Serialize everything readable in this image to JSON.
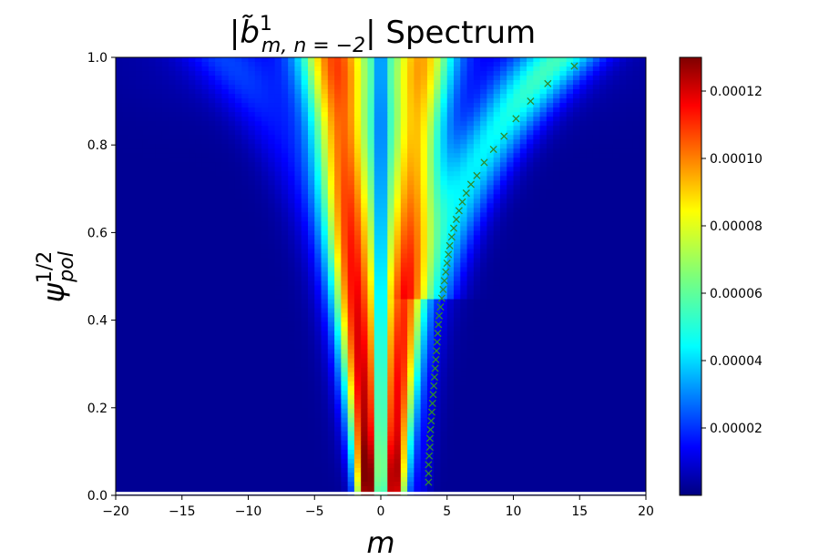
{
  "chart_data": {
    "type": "heatmap",
    "title": "|b̃¹ m, n = −2| Spectrum",
    "title_parts": {
      "prefix": "|",
      "sym": "b̃",
      "sup": "1",
      "sub": "m, n = −2",
      "suffix": "| Spectrum"
    },
    "xlabel": "m",
    "ylabel_parts": {
      "sym": "ψ",
      "sup": "1/2",
      "sub": "pol"
    },
    "xlim": [
      -20,
      20
    ],
    "ylim": [
      0.0,
      1.0
    ],
    "x_ticks": [
      -20,
      -15,
      -10,
      -5,
      0,
      5,
      10,
      15,
      20
    ],
    "x_tick_labels": [
      "−20",
      "−15",
      "−10",
      "−5",
      "0",
      "5",
      "10",
      "15",
      "20"
    ],
    "y_ticks": [
      0.0,
      0.2,
      0.4,
      0.6,
      0.8,
      1.0
    ],
    "y_tick_labels": [
      "0.0",
      "0.2",
      "0.4",
      "0.6",
      "0.8",
      "1.0"
    ],
    "colorbar": {
      "colormap": "jet",
      "vmin": 0.0,
      "vmax": 0.00013,
      "ticks": [
        2e-05,
        4e-05,
        6e-05,
        8e-05,
        0.0001,
        0.00012
      ],
      "tick_labels": [
        "0.00002",
        "0.00004",
        "0.00006",
        "0.00008",
        "0.00010",
        "0.00012"
      ]
    },
    "overlay_series": {
      "marker": "x",
      "color": "#2e8b2e",
      "x": [
        3.6,
        3.6,
        3.6,
        3.65,
        3.7,
        3.7,
        3.75,
        3.8,
        3.85,
        3.9,
        3.95,
        4.0,
        4.05,
        4.1,
        4.15,
        4.2,
        4.25,
        4.3,
        4.35,
        4.4,
        4.5,
        4.6,
        4.7,
        4.8,
        4.9,
        5.0,
        5.1,
        5.2,
        5.35,
        5.5,
        5.7,
        5.9,
        6.15,
        6.45,
        6.8,
        7.25,
        7.8,
        8.5,
        9.3,
        10.2,
        11.3,
        12.6,
        14.6
      ],
      "y": [
        0.03,
        0.05,
        0.07,
        0.09,
        0.11,
        0.13,
        0.15,
        0.17,
        0.19,
        0.21,
        0.23,
        0.25,
        0.27,
        0.29,
        0.31,
        0.33,
        0.35,
        0.37,
        0.39,
        0.41,
        0.43,
        0.45,
        0.47,
        0.49,
        0.51,
        0.53,
        0.55,
        0.57,
        0.59,
        0.61,
        0.63,
        0.65,
        0.67,
        0.69,
        0.71,
        0.73,
        0.76,
        0.79,
        0.82,
        0.86,
        0.9,
        0.94,
        0.98
      ]
    },
    "ridges": [
      {
        "center_bottom": -1.0,
        "center_top": -3.5,
        "peak": 0.000125,
        "note_color": "red"
      },
      {
        "center_bottom": 1.0,
        "center_top": 3.0,
        "peak": 0.000118,
        "note_color": "red"
      },
      {
        "center_bottom": 3.0,
        "center_top": 14.5,
        "peak": 4e-05,
        "note_color": "cyan"
      }
    ]
  }
}
